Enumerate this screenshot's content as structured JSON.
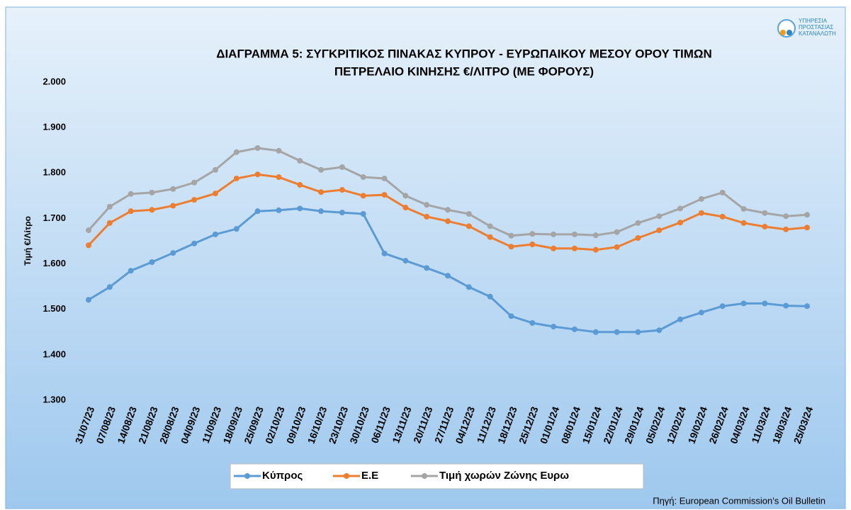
{
  "logo": {
    "lines": [
      "ΥΠΗΡΕΣΙΑ",
      "ΠΡΟΣΤΑΣΙΑΣ",
      "ΚΑΤΑΝΑΛΩΤΗ"
    ]
  },
  "chart_data": {
    "type": "line",
    "title": [
      "ΔΙΑΓΡΑΜΜΑ 5: ΣΥΓΚΡΙΤΙΚΟΣ ΠΙΝΑΚΑΣ ΚΥΠΡΟΥ - ΕΥΡΩΠΑΙΚΟΥ ΜΕΣΟΥ ΟΡΟΥ ΤΙΜΩΝ",
      "ΠΕΤΡΕΛΑΙΟ ΚΙΝΗΣΗΣ €/ΛΙΤΡΟ (ΜΕ ΦΟΡΟΥΣ)"
    ],
    "y_label": "Τιμή €/Λίτρο",
    "source": "Πηγή: European Commission's Oil Bulletin",
    "categories": [
      "31/07/23",
      "07/08/23",
      "14/08/23",
      "21/08/23",
      "28/08/23",
      "04/09/23",
      "11/09/23",
      "18/09/23",
      "25/09/23",
      "02/10/23",
      "09/10/23",
      "16/10/23",
      "23/10/23",
      "30/10/23",
      "06/11/23",
      "13/11/23",
      "20/11/23",
      "27/11/23",
      "04/12/23",
      "11/12/23",
      "18/12/23",
      "25/12/23",
      "01/01/24",
      "08/01/24",
      "15/01/24",
      "22/01/24",
      "29/01/24",
      "05/02/24",
      "12/02/24",
      "19/02/24",
      "26/02/24",
      "04/03/24",
      "11/03/24",
      "18/03/24",
      "25/03/24"
    ],
    "series": [
      {
        "name": "Κύπρος",
        "color": "#5b9bd5",
        "values": [
          1.521,
          1.549,
          1.585,
          1.604,
          1.624,
          1.645,
          1.665,
          1.677,
          1.716,
          1.718,
          1.722,
          1.716,
          1.713,
          1.71,
          1.623,
          1.607,
          1.591,
          1.574,
          1.549,
          1.528,
          1.485,
          1.47,
          1.462,
          1.456,
          1.45,
          1.45,
          1.45,
          1.454,
          1.478,
          1.493,
          1.507,
          1.513,
          1.513,
          1.508,
          1.507
        ]
      },
      {
        "name": "Ε.Ε",
        "color": "#ed7d31",
        "values": [
          1.641,
          1.69,
          1.716,
          1.719,
          1.728,
          1.741,
          1.755,
          1.788,
          1.797,
          1.791,
          1.774,
          1.758,
          1.763,
          1.75,
          1.752,
          1.724,
          1.704,
          1.694,
          1.683,
          1.659,
          1.638,
          1.643,
          1.634,
          1.634,
          1.631,
          1.637,
          1.657,
          1.674,
          1.691,
          1.712,
          1.704,
          1.69,
          1.682,
          1.676,
          1.68
        ]
      },
      {
        "name": "Τιμή χωρών Ζώνης Ευρω",
        "color": "#a5a5a5",
        "values": [
          1.674,
          1.726,
          1.754,
          1.757,
          1.765,
          1.779,
          1.807,
          1.846,
          1.855,
          1.849,
          1.827,
          1.807,
          1.813,
          1.791,
          1.788,
          1.75,
          1.73,
          1.719,
          1.71,
          1.683,
          1.662,
          1.666,
          1.665,
          1.665,
          1.663,
          1.67,
          1.69,
          1.705,
          1.722,
          1.743,
          1.757,
          1.721,
          1.712,
          1.705,
          1.708
        ]
      }
    ],
    "ylim": [
      1.3,
      2.0
    ],
    "yticks": [
      {
        "value": 1.3,
        "label": "1.300"
      },
      {
        "value": 1.4,
        "label": "1.400"
      },
      {
        "value": 1.5,
        "label": "1.500"
      },
      {
        "value": 1.6,
        "label": "1.600"
      },
      {
        "value": 1.7,
        "label": "1.700"
      },
      {
        "value": 1.8,
        "label": "1.800"
      },
      {
        "value": 1.9,
        "label": "1.900"
      },
      {
        "value": 2.0,
        "label": "2.000"
      }
    ],
    "grid": false,
    "legend": "bottom"
  }
}
